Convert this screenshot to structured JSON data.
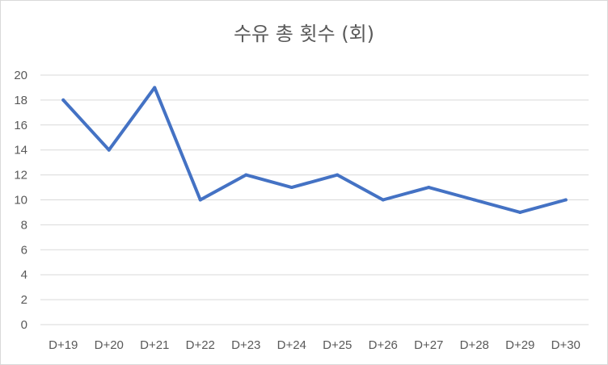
{
  "chart_data": {
    "type": "line",
    "title": "수유 총 횟수 (회)",
    "categories": [
      "D+19",
      "D+20",
      "D+21",
      "D+22",
      "D+23",
      "D+24",
      "D+25",
      "D+26",
      "D+27",
      "D+28",
      "D+29",
      "D+30"
    ],
    "series": [
      {
        "values": [
          18,
          14,
          19,
          10,
          12,
          11,
          12,
          10,
          11,
          10,
          9,
          10
        ],
        "color": "#4472c4"
      }
    ],
    "ylim": [
      0,
      20
    ],
    "yticks": [
      0,
      2,
      4,
      6,
      8,
      10,
      12,
      14,
      16,
      18,
      20
    ],
    "grid": true,
    "legend": "none",
    "colors": {
      "gridline": "#d9d9d9",
      "text": "#595959"
    }
  }
}
